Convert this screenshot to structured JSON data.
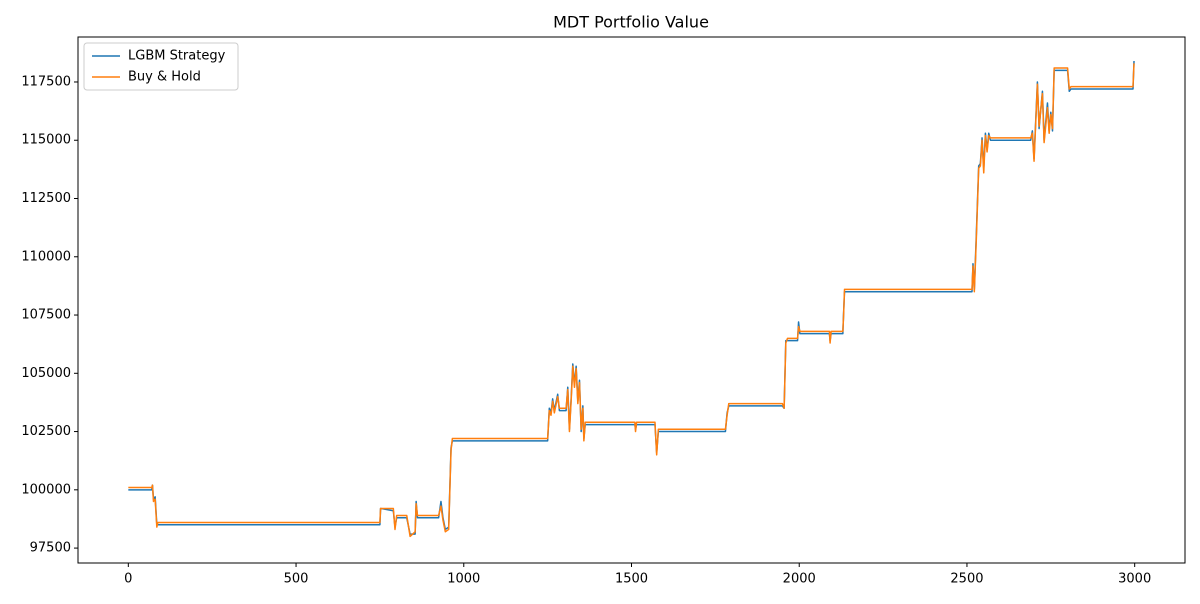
{
  "chart_data": {
    "type": "line",
    "title": "MDT Portfolio Value",
    "x": [
      0,
      70,
      72,
      75,
      80,
      85,
      88,
      750,
      752,
      790,
      795,
      800,
      830,
      840,
      855,
      858,
      862,
      925,
      932,
      938,
      945,
      955,
      962,
      966,
      1250,
      1255,
      1260,
      1265,
      1270,
      1280,
      1285,
      1305,
      1310,
      1315,
      1320,
      1325,
      1330,
      1335,
      1340,
      1345,
      1350,
      1355,
      1358,
      1362,
      1510,
      1512,
      1515,
      1570,
      1575,
      1580,
      1780,
      1785,
      1790,
      1950,
      1955,
      1960,
      1965,
      1995,
      1998,
      2002,
      2090,
      2092,
      2095,
      2130,
      2132,
      2135,
      2515,
      2518,
      2522,
      2528,
      2535,
      2540,
      2545,
      2550,
      2555,
      2560,
      2565,
      2570,
      2690,
      2695,
      2700,
      2710,
      2715,
      2725,
      2730,
      2740,
      2745,
      2750,
      2755,
      2760,
      2800,
      2805,
      2810,
      2995,
      2998
    ],
    "series": [
      {
        "name": "LGBM Strategy",
        "color": "#1f77b4",
        "values": [
          100000,
          100000,
          100200,
          99600,
          99700,
          98500,
          98500,
          98500,
          99200,
          99100,
          98400,
          98800,
          98800,
          98100,
          98100,
          99500,
          98800,
          98800,
          99500,
          98800,
          98300,
          98400,
          101800,
          102100,
          102100,
          103500,
          103300,
          103900,
          103400,
          104100,
          103400,
          103400,
          104400,
          102600,
          103900,
          105400,
          104500,
          105300,
          103800,
          104700,
          102500,
          103600,
          102200,
          102800,
          102800,
          102600,
          102800,
          102800,
          101600,
          102500,
          102500,
          103300,
          103600,
          103600,
          103500,
          106400,
          106400,
          106400,
          107200,
          106700,
          106700,
          106400,
          106700,
          106700,
          107500,
          108500,
          108500,
          109700,
          108600,
          111000,
          113900,
          114000,
          115100,
          113800,
          115300,
          114600,
          115300,
          115000,
          115000,
          115400,
          114200,
          117500,
          115500,
          117100,
          115000,
          116600,
          115400,
          116200,
          115400,
          118000,
          118000,
          117100,
          117200,
          117200,
          118400
        ]
      },
      {
        "name": "Buy & Hold",
        "color": "#ff7f0e",
        "values": [
          100100,
          100100,
          100200,
          99500,
          99600,
          98400,
          98600,
          98600,
          99200,
          99200,
          98300,
          98900,
          98900,
          98000,
          98200,
          99400,
          98900,
          98900,
          99300,
          98700,
          98200,
          98300,
          101700,
          102200,
          102200,
          103400,
          103200,
          103800,
          103300,
          104000,
          103500,
          103500,
          104300,
          102500,
          103800,
          105300,
          104400,
          105200,
          103700,
          104600,
          102600,
          103500,
          102100,
          102900,
          102900,
          102500,
          102900,
          102900,
          101500,
          102600,
          102600,
          103200,
          103700,
          103700,
          103500,
          106300,
          106500,
          106500,
          107000,
          106800,
          106800,
          106300,
          106800,
          106800,
          107400,
          108600,
          108600,
          109600,
          108500,
          110800,
          113800,
          113900,
          115000,
          113600,
          115200,
          114500,
          115200,
          115100,
          115100,
          115300,
          114100,
          117400,
          115600,
          117000,
          114900,
          116400,
          115300,
          116100,
          115500,
          118100,
          118100,
          117200,
          117300,
          117300,
          118300
        ]
      }
    ],
    "xlim": [
      -150,
      3150
    ],
    "xticks": [
      0,
      500,
      1000,
      1500,
      2000,
      2500,
      3000
    ],
    "ylim": [
      96860,
      119430
    ],
    "yticks": [
      97500,
      100000,
      102500,
      105000,
      107500,
      110000,
      112500,
      115000,
      117500
    ],
    "legend": "upper left",
    "grid": false
  }
}
